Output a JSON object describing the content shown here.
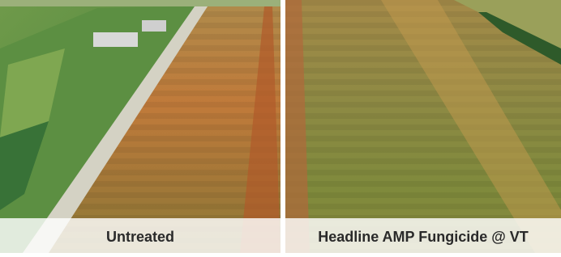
{
  "panels": [
    {
      "caption": "Untreated"
    },
    {
      "caption": "Headline AMP Fungicide @ VT"
    }
  ]
}
